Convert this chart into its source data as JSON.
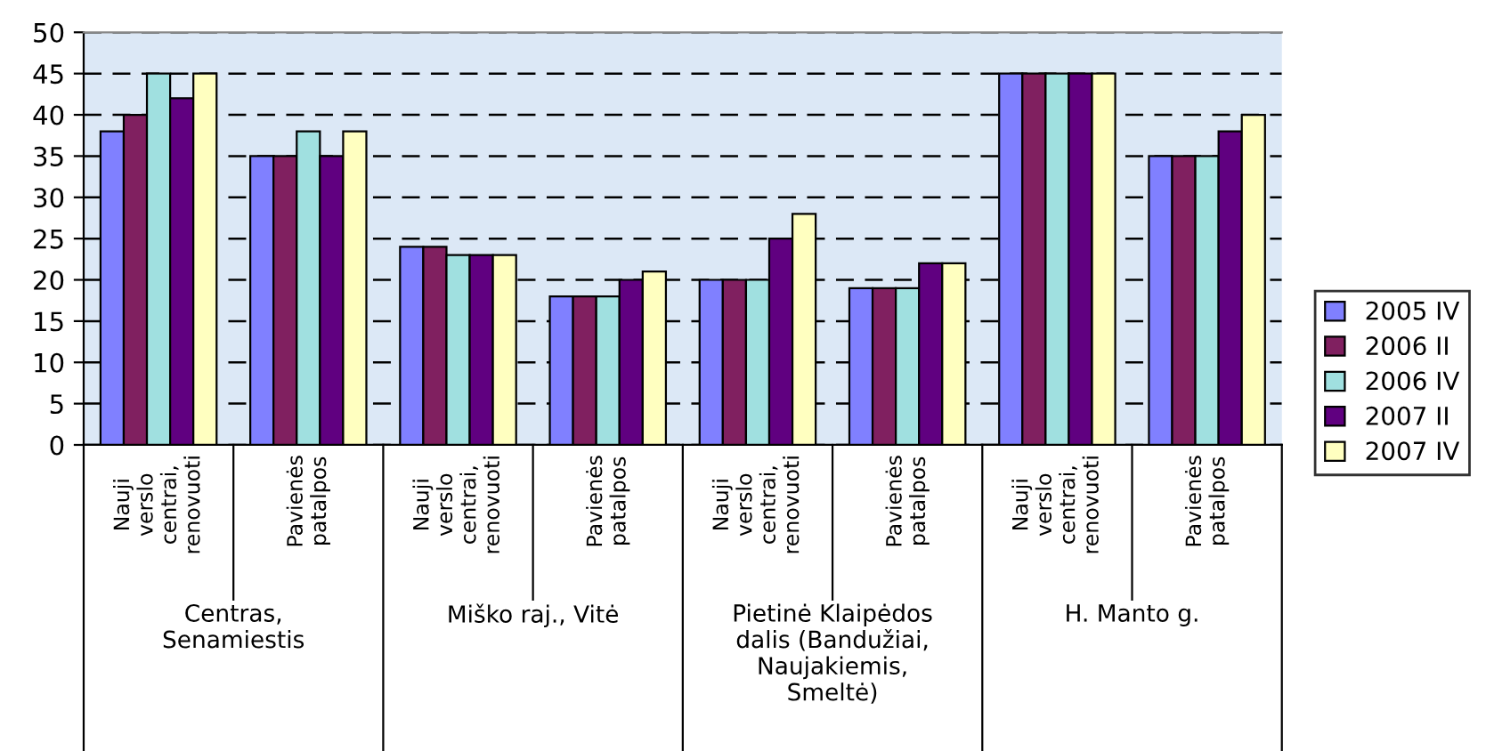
{
  "chart_data": {
    "type": "bar",
    "categories": [
      "Nauji\nverslo\ncentrai,\nrenovuoti",
      "Pavienės\npatalpos",
      "Nauji\nverslo\ncentrai,\nrenovuoti",
      "Pavienės\npatalpos",
      "Nauji\nverslo\ncentrai,\nrenovuoti",
      "Pavienės\npatalpos",
      "Nauji\nverslo\ncentrai,\nrenovuoti",
      "Pavienės\npatalpos"
    ],
    "annotations": [
      "Centras,\nSenamiestis",
      "Miško raj., Vitė",
      "Pietinė Klaipėdos\ndalis (Bandužiai,\nNaujakiemis,\nSmeltė)",
      "H. Manto g."
    ],
    "series": [
      {
        "name": "2005 IV",
        "color": "#8080ff",
        "values": [
          38,
          35,
          24,
          18,
          20,
          19,
          45,
          35
        ]
      },
      {
        "name": "2006 II",
        "color": "#802060",
        "values": [
          40,
          35,
          24,
          18,
          20,
          19,
          45,
          35
        ]
      },
      {
        "name": "2006 IV",
        "color": "#a0e0e0",
        "values": [
          45,
          38,
          23,
          18,
          20,
          19,
          45,
          35
        ]
      },
      {
        "name": "2007 II",
        "color": "#600080",
        "values": [
          42,
          35,
          23,
          20,
          25,
          22,
          45,
          38
        ]
      },
      {
        "name": "2007 IV",
        "color": "#ffffc0",
        "values": [
          45,
          38,
          23,
          21,
          28,
          22,
          45,
          40
        ]
      }
    ],
    "ylim": [
      0,
      50
    ],
    "yticks": [
      0,
      5,
      10,
      15,
      20,
      25,
      30,
      35,
      40,
      45,
      50
    ],
    "grid": "y",
    "legend": "right"
  }
}
